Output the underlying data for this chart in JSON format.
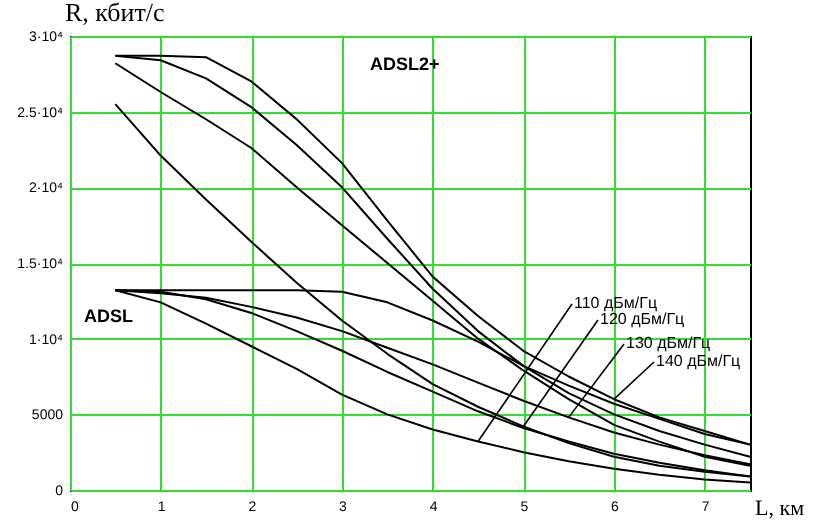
{
  "chart_data": {
    "type": "line",
    "xlabel": "L, км",
    "ylabel": "R, кбит/с",
    "x": [
      0.5,
      1,
      1.5,
      2,
      2.5,
      3,
      3.5,
      4,
      4.5,
      5,
      5.5,
      6,
      6.5,
      7,
      7.5
    ],
    "series": [
      {
        "color": "#000000",
        "values": [
          28700,
          28700,
          28600,
          27000,
          24500,
          21600,
          17800,
          14100,
          11500,
          9200,
          7500,
          6000,
          4800,
          3900,
          3000
        ]
      },
      {
        "color": "#000000",
        "values": [
          28700,
          28400,
          27200,
          25300,
          22800,
          20000,
          16600,
          13300,
          10500,
          8200,
          6400,
          5000,
          3900,
          3000,
          2200
        ]
      },
      {
        "color": "#000000",
        "values": [
          28200,
          26300,
          24500,
          22600,
          20000,
          17500,
          15000,
          12500,
          10000,
          7900,
          6000,
          4300,
          3200,
          2200,
          1600
        ]
      },
      {
        "color": "#000000",
        "values": [
          25500,
          22100,
          19200,
          16400,
          13700,
          11200,
          9000,
          7000,
          5500,
          4200,
          3100,
          2200,
          1600,
          1200,
          900
        ]
      },
      {
        "color": "#000000",
        "values": [
          13200,
          13200,
          13200,
          13200,
          13200,
          13100,
          12400,
          11200,
          9800,
          8200,
          6900,
          5700,
          4700,
          3700,
          3000
        ]
      },
      {
        "color": "#000000",
        "values": [
          13200,
          13100,
          12600,
          11700,
          10500,
          9200,
          7800,
          6500,
          5200,
          4100,
          3200,
          2400,
          1800,
          1300,
          900
        ]
      },
      {
        "color": "#000000",
        "values": [
          13200,
          13000,
          12700,
          12100,
          11400,
          10500,
          9400,
          8300,
          7100,
          5900,
          4800,
          3800,
          3000,
          2300,
          1700
        ]
      },
      {
        "color": "#000000",
        "values": [
          13200,
          12400,
          11000,
          9500,
          8000,
          6300,
          5000,
          4000,
          3200,
          2500,
          1900,
          1400,
          1000,
          700,
          500
        ]
      }
    ],
    "xlim": [
      0,
      7.5
    ],
    "xticks": [
      0,
      1,
      2,
      3,
      4,
      5,
      6,
      7
    ],
    "ylim": [
      0,
      30000
    ],
    "yticks": [
      0,
      5000,
      {
        "value": 10000,
        "label": "1·10⁴"
      },
      {
        "value": 15000,
        "label": "1.5·10⁴"
      },
      {
        "value": 20000,
        "label": "2·10⁴"
      },
      {
        "value": 25000,
        "label": "2.5·10⁴"
      },
      {
        "value": 30000,
        "label": "3·10⁴"
      }
    ],
    "grid": true,
    "legend": false,
    "marker": "none",
    "line_style": "solid",
    "annotations": [
      "ADSL2+",
      "ADSL",
      {
        "text": "110 дБм/Гц",
        "x": 4.5,
        "y": 3200
      },
      {
        "text": "120 дБм/Гц",
        "x": 5,
        "y": 4200
      },
      {
        "text": "130 дБм/Гц",
        "x": 5.5,
        "y": 4800
      },
      {
        "text": "140 дБм/Гц",
        "x": 6,
        "y": 6000
      }
    ]
  }
}
